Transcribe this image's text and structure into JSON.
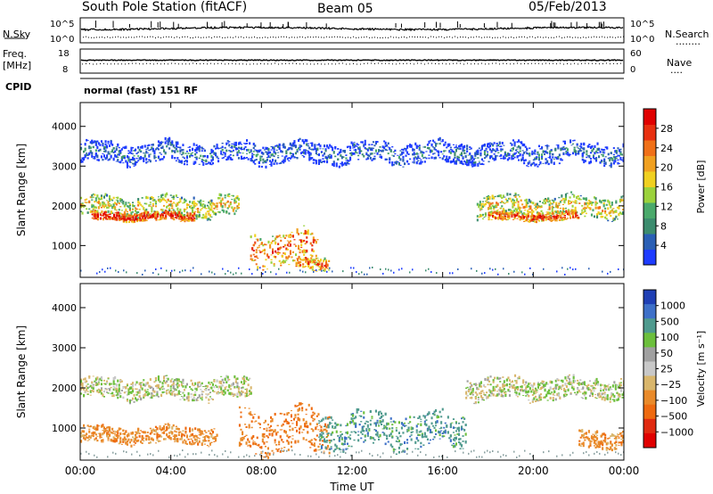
{
  "header": {
    "station": "South Pole Station (fitACF)",
    "beam": "Beam 05",
    "date": "05/Feb/2013"
  },
  "left_labels": {
    "nsky": "N.Sky",
    "freq": "Freq.",
    "freq_unit": "[MHz]",
    "cpid": "CPID"
  },
  "right_labels": {
    "nsearch": "N.Search",
    "nsearch_dots": "········",
    "nave": "Nave",
    "nave_dots": "····"
  },
  "cpid_text": "normal (fast) 151 RF",
  "noise_ticks": {
    "left": [
      "10^5",
      "10^0"
    ],
    "right": [
      "10^5",
      "10^0"
    ]
  },
  "freq_ticks": {
    "left": [
      "18",
      "8"
    ],
    "right": [
      "60",
      "0"
    ]
  },
  "x_axis": {
    "label": "Time UT",
    "ticks": [
      "00:00",
      "04:00",
      "08:00",
      "12:00",
      "16:00",
      "20:00",
      "00:00"
    ]
  },
  "colors": {
    "power": [
      "#1e3cff",
      "#2a5fb5",
      "#3c8c6e",
      "#4aa96b",
      "#9bd23c",
      "#f0d020",
      "#f0a020",
      "#f07018",
      "#e83010",
      "#e00000"
    ],
    "velocity": [
      "#1f3fb4",
      "#3e70c8",
      "#4f9a8e",
      "#6cbf3c",
      "#a0a0a0",
      "#c8c8c8",
      "#d9b66c",
      "#e98a2a",
      "#ee6a10",
      "#e02a10",
      "#e00000"
    ]
  },
  "chart_data": [
    {
      "type": "heatmap",
      "title": "",
      "ylabel": "Slant Range [km]",
      "xlabel": "",
      "x_ticks": [
        "00:00",
        "04:00",
        "08:00",
        "12:00",
        "16:00",
        "20:00",
        "00:00"
      ],
      "y_ticks": [
        "1000",
        "2000",
        "3000",
        "4000"
      ],
      "ylim": [
        200,
        4600
      ],
      "xlim": [
        0,
        24
      ],
      "colorbar": {
        "label": "Power [dB]",
        "ticks": [
          "4",
          "8",
          "12",
          "16",
          "20",
          "24",
          "28"
        ],
        "range": [
          0,
          30
        ]
      },
      "features": [
        {
          "t0": 0.0,
          "t1": 7.0,
          "r_center": 1950,
          "r_half": 250,
          "power": 18
        },
        {
          "t0": 0.5,
          "t1": 5.0,
          "r_center": 1700,
          "r_half": 100,
          "power": 28
        },
        {
          "t0": 7.5,
          "t1": 10.5,
          "r_center": 900,
          "r_half": 400,
          "power": 24
        },
        {
          "t0": 9.5,
          "t1": 11.0,
          "r_center": 500,
          "r_half": 150,
          "power": 24
        },
        {
          "t0": 17.5,
          "t1": 24.0,
          "r_center": 1950,
          "r_half": 250,
          "power": 18
        },
        {
          "t0": 18.0,
          "t1": 22.0,
          "r_center": 1700,
          "r_half": 100,
          "power": 26
        },
        {
          "t0": 0.0,
          "t1": 24.0,
          "r_center": 3300,
          "r_half": 250,
          "power": 6
        }
      ]
    },
    {
      "type": "heatmap",
      "title": "",
      "ylabel": "Slant Range [km]",
      "xlabel": "Time UT",
      "x_ticks": [
        "00:00",
        "04:00",
        "08:00",
        "12:00",
        "16:00",
        "20:00",
        "00:00"
      ],
      "y_ticks": [
        "1000",
        "2000",
        "3000",
        "4000"
      ],
      "ylim": [
        200,
        4600
      ],
      "xlim": [
        0,
        24
      ],
      "colorbar": {
        "label": "Velocity [m s⁻¹]",
        "ticks": [
          "1000",
          "500",
          "100",
          "50",
          "25",
          "−25",
          "−100",
          "−500",
          "−1000"
        ],
        "range": [
          -1000,
          1000
        ]
      },
      "features": [
        {
          "t0": 0.0,
          "t1": 7.5,
          "r_center": 1950,
          "r_half": 250,
          "velocity": 0
        },
        {
          "t0": 17.0,
          "t1": 24.0,
          "r_center": 1950,
          "r_half": 250,
          "velocity": 0
        },
        {
          "t0": 0.0,
          "t1": 6.0,
          "r_center": 800,
          "r_half": 200,
          "velocity": -300
        },
        {
          "t0": 7.0,
          "t1": 11.0,
          "r_center": 900,
          "r_half": 500,
          "velocity": -400
        },
        {
          "t0": 10.5,
          "t1": 17.0,
          "r_center": 900,
          "r_half": 400,
          "velocity": 300
        },
        {
          "t0": 22.0,
          "t1": 24.0,
          "r_center": 700,
          "r_half": 200,
          "velocity": -300
        }
      ]
    }
  ]
}
